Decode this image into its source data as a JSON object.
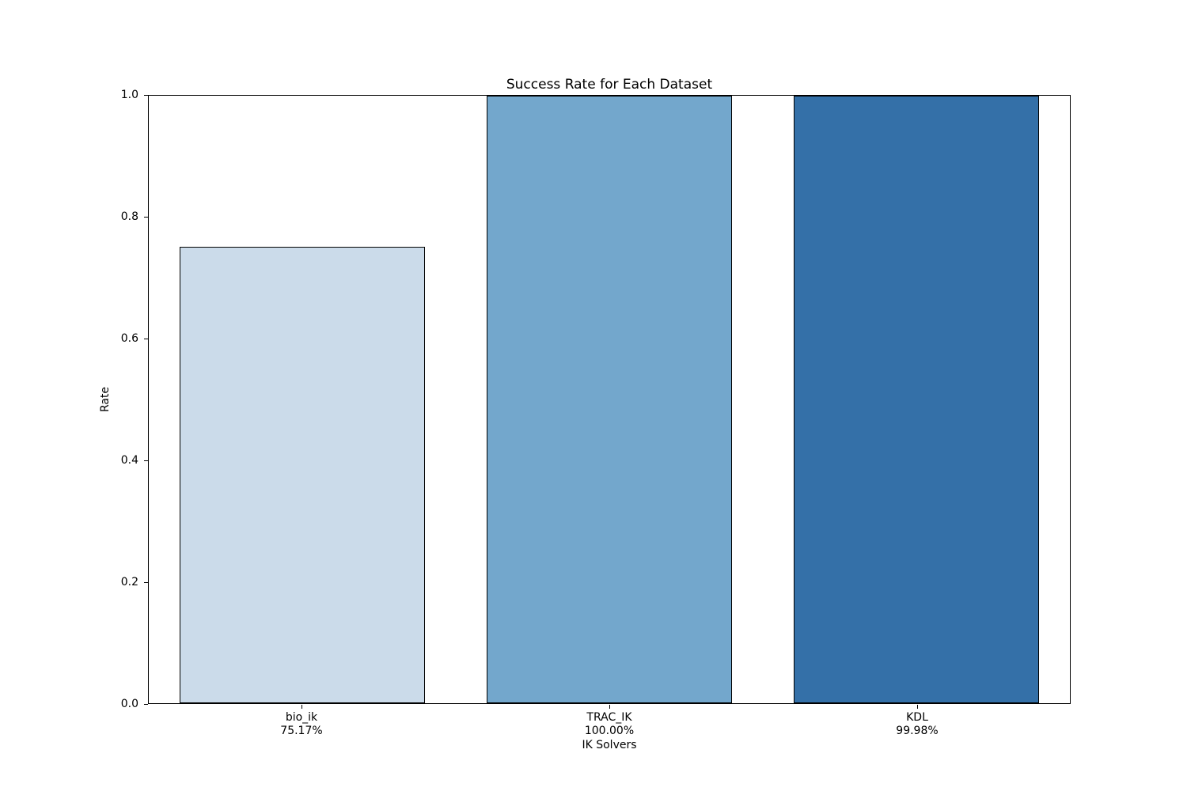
{
  "chart_data": {
    "type": "bar",
    "title": "Success Rate for Each Dataset",
    "xlabel": "IK Solvers",
    "ylabel": "Rate",
    "categories": [
      "bio_ik",
      "TRAC_IK",
      "KDL"
    ],
    "values": [
      0.7517,
      1.0,
      0.9998
    ],
    "value_labels": [
      "75.17%",
      "100.00%",
      "99.98%"
    ],
    "bar_colors": [
      "#cbdbea",
      "#73a7cc",
      "#3470a8"
    ],
    "bar_edge_color": "#000000",
    "ylim": [
      0.0,
      1.0
    ],
    "xlim": [
      -0.5,
      2.5
    ],
    "bar_width": 0.8,
    "yticks": [
      0.0,
      0.2,
      0.4,
      0.6,
      0.8,
      1.0
    ],
    "ytick_labels": [
      "0.0",
      "0.2",
      "0.4",
      "0.6",
      "0.8",
      "1.0"
    ],
    "grid": false,
    "legend": null
  }
}
